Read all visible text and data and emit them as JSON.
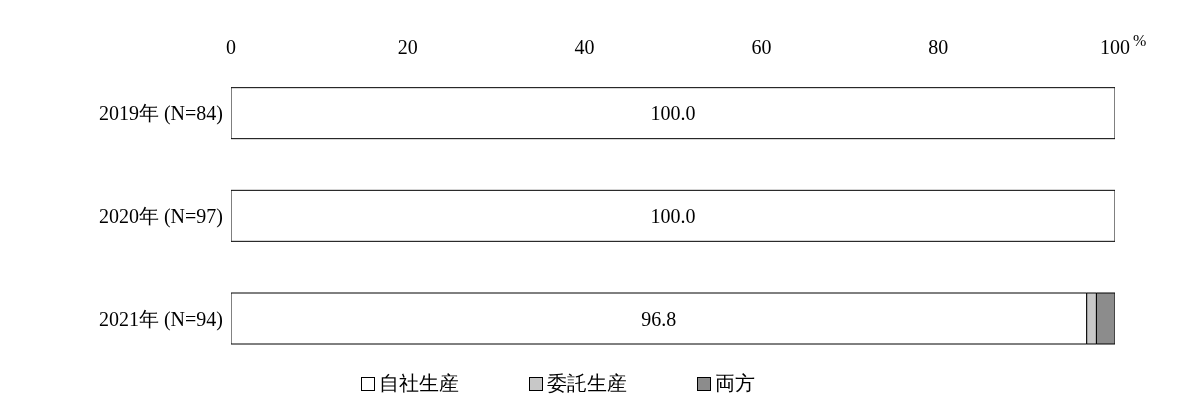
{
  "chart_data": {
    "type": "bar",
    "orientation": "horizontal",
    "stacked": true,
    "categories": [
      "2019年 (N=84)",
      "2020年 (N=97)",
      "2021年 (N=94)"
    ],
    "series": [
      {
        "name": "自社生産",
        "color": "#ffffff",
        "values": [
          100.0,
          100.0,
          96.8
        ],
        "value_labels": [
          "100.0",
          "100.0",
          "96.8"
        ]
      },
      {
        "name": "委託生産",
        "color": "#c8c8c8",
        "values": [
          0,
          0,
          1.1
        ]
      },
      {
        "name": "両方",
        "color": "#8c8c8c",
        "values": [
          0,
          0,
          2.1
        ]
      }
    ],
    "xlim": [
      0,
      100
    ],
    "xticks": [
      0,
      20,
      40,
      60,
      80,
      100
    ],
    "xlabel": "%",
    "legend": "bottom"
  }
}
